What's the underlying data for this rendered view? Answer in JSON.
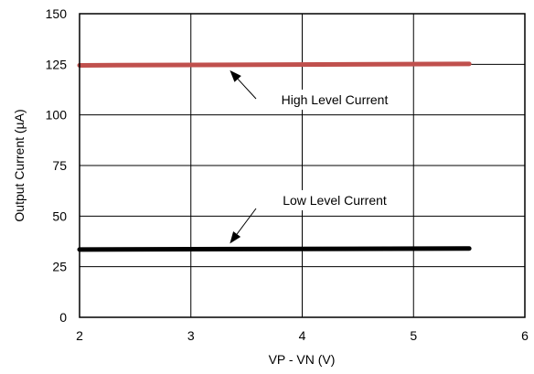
{
  "chart_data": {
    "type": "line",
    "title": "",
    "xlabel": "VP - VN (V)",
    "ylabel": "Output Current (µA)",
    "xlim": [
      2,
      6
    ],
    "ylim": [
      0,
      150
    ],
    "xticks": [
      2,
      3,
      4,
      5,
      6
    ],
    "yticks": [
      0,
      25,
      50,
      75,
      100,
      125,
      150
    ],
    "grid": true,
    "series": [
      {
        "name": "High Level Current",
        "color": "#c0504d",
        "x": [
          2,
          5.5
        ],
        "y": [
          124.5,
          125.2
        ]
      },
      {
        "name": "Low Level Current",
        "color": "#000000",
        "x": [
          2,
          5.5
        ],
        "y": [
          33.5,
          34
        ]
      }
    ],
    "annotations": [
      {
        "text": "High Level Current",
        "series": 0,
        "arrow_to_x": 3.35
      },
      {
        "text": "Low Level Current",
        "series": 1,
        "arrow_to_x": 3.35
      }
    ]
  }
}
